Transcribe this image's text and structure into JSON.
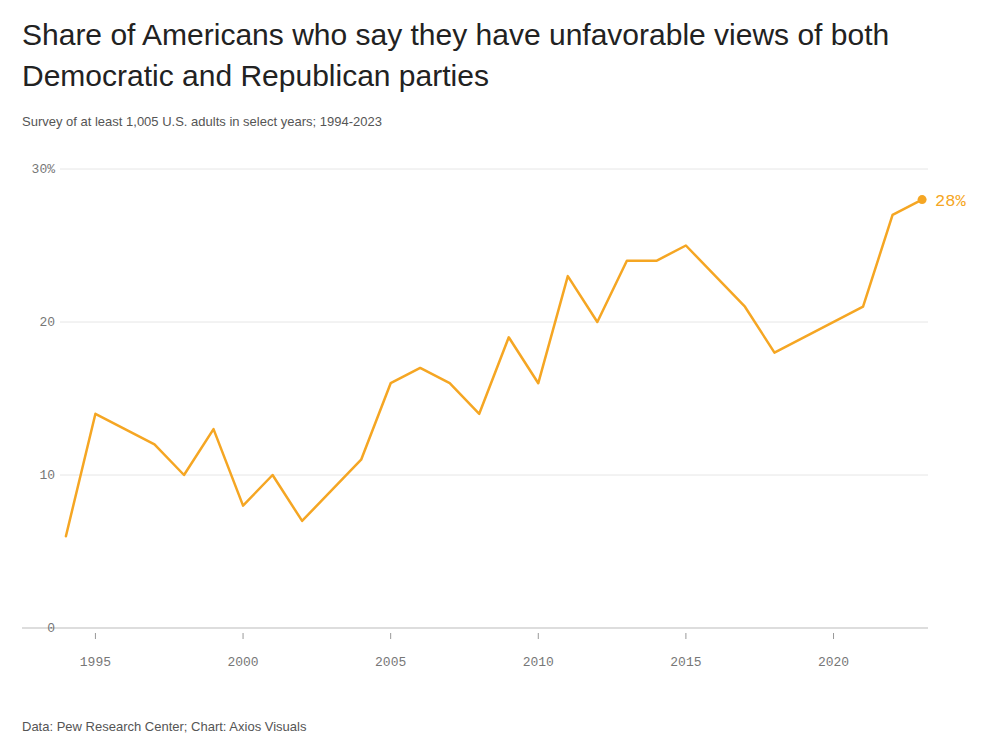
{
  "chart_data": {
    "type": "line",
    "title": "Share of Americans who say they have unfavorable views of both Democratic and Republican parties",
    "subtitle": "Survey of at least 1,005 U.S. adults in select years; 1994-2023",
    "source": "Data: Pew Research Center; Chart: Axios Visuals",
    "x": [
      1994,
      1995,
      1997,
      1998,
      1999,
      2000,
      2001,
      2002,
      2004,
      2005,
      2006,
      2007,
      2008,
      2009,
      2010,
      2011,
      2012,
      2013,
      2014,
      2015,
      2017,
      2018,
      2021,
      2022,
      2023
    ],
    "values": [
      6,
      14,
      12,
      10,
      13,
      8,
      10,
      7,
      11,
      16,
      17,
      16,
      14,
      19,
      16,
      23,
      20,
      24,
      24,
      25,
      21,
      18,
      21,
      27,
      28
    ],
    "color": "#f5a623",
    "xlim": [
      1993.8,
      2023.2
    ],
    "xticks": [
      1995,
      2000,
      2005,
      2010,
      2015,
      2020
    ],
    "ylim": [
      0,
      30
    ],
    "yticks": [
      0,
      10,
      20,
      {
        "value": 30,
        "label": "30%"
      }
    ],
    "grid": true,
    "annotations": [
      {
        "text": "28%",
        "x": 2023,
        "y": 28
      }
    ]
  }
}
